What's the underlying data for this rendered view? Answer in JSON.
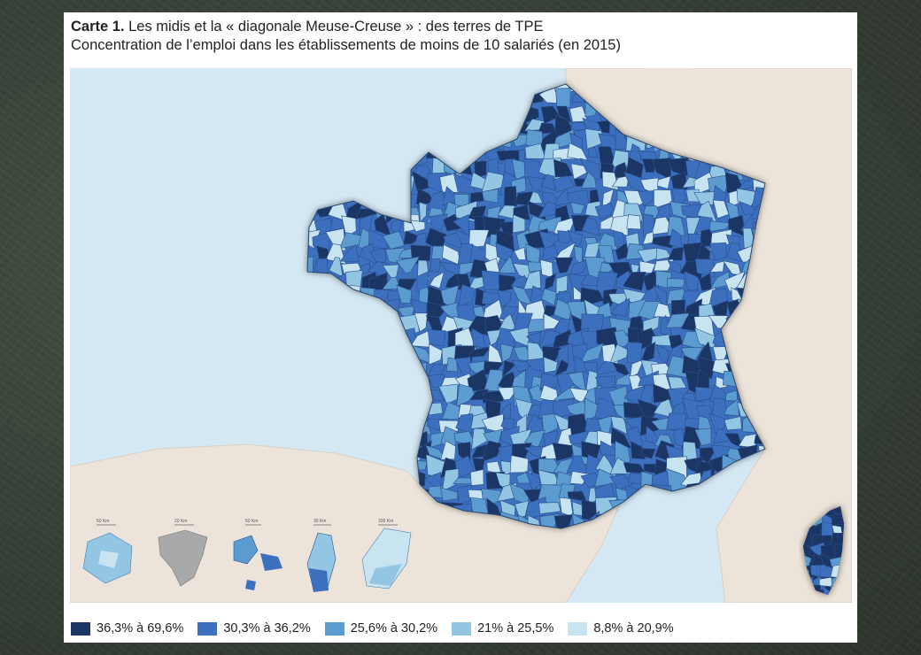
{
  "header": {
    "title_label": "Carte 1.",
    "title_text": " Les midis et la « diagonale Meuse-Creuse » : des terres de TPE",
    "subtitle": "Concentration de l’emploi dans les établissements de moins de 10 salariés (en 2015)"
  },
  "colors": {
    "sea": "#d4e8f4",
    "land_foreign": "#ece4da",
    "class_1": "#1b3565",
    "class_2": "#3c70bf",
    "class_3": "#5b9bd0",
    "class_4": "#93c6e3",
    "class_5": "#c8e4f1"
  },
  "legend": [
    {
      "label": "36,3% à 69,6%",
      "color": "#1b3565"
    },
    {
      "label": "30,3% à 36,2%",
      "color": "#3c70bf"
    },
    {
      "label": "25,6% à 30,2%",
      "color": "#5b9bd0"
    },
    {
      "label": "21% à 25,5%",
      "color": "#93c6e3"
    },
    {
      "label": "8,8% à 20,9%",
      "color": "#c8e4f1"
    }
  ],
  "insets": [
    {
      "scale": "50 Km"
    },
    {
      "scale": "20 Km"
    },
    {
      "scale": "50 Km"
    },
    {
      "scale": "30 Km"
    },
    {
      "scale": "200 Km"
    }
  ]
}
